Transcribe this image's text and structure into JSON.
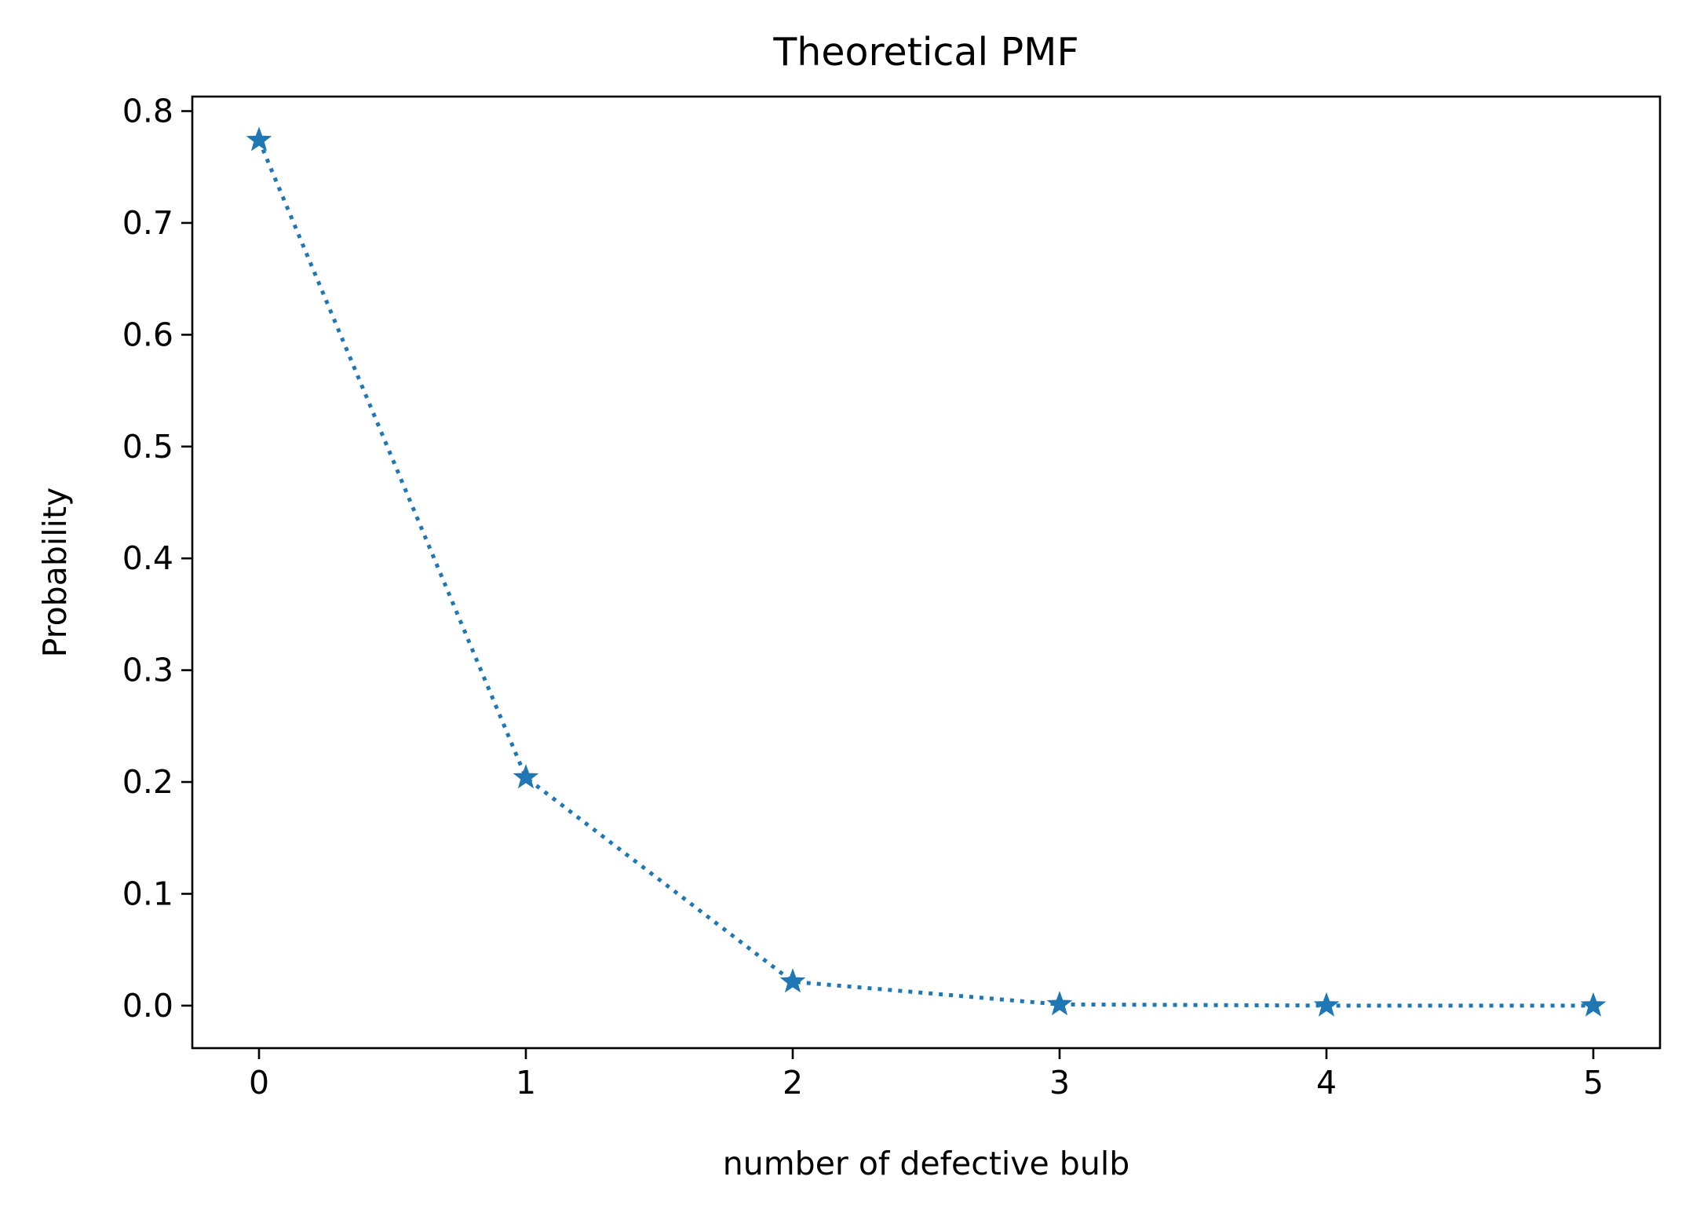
{
  "chart_data": {
    "type": "line",
    "title": "Theoretical PMF",
    "xlabel": "number of defective bulb",
    "ylabel": "Probability",
    "xlim": [
      -0.25,
      5.25
    ],
    "ylim": [
      -0.038,
      0.813
    ],
    "xticks": [
      0,
      1,
      2,
      3,
      4,
      5
    ],
    "xtick_labels": [
      "0",
      "1",
      "2",
      "3",
      "4",
      "5"
    ],
    "yticks": [
      0.0,
      0.1,
      0.2,
      0.3,
      0.4,
      0.5,
      0.6,
      0.7,
      0.8
    ],
    "ytick_labels": [
      "0.0",
      "0.1",
      "0.2",
      "0.3",
      "0.4",
      "0.5",
      "0.6",
      "0.7",
      "0.8"
    ],
    "grid": false,
    "series": [
      {
        "x": [
          0,
          1,
          2,
          3,
          4,
          5
        ],
        "values": [
          0.774,
          0.204,
          0.0214,
          0.0011,
          3e-05,
          3e-07
        ],
        "color": "#1f77b4",
        "line_style": "dotted",
        "marker": "star"
      }
    ]
  }
}
